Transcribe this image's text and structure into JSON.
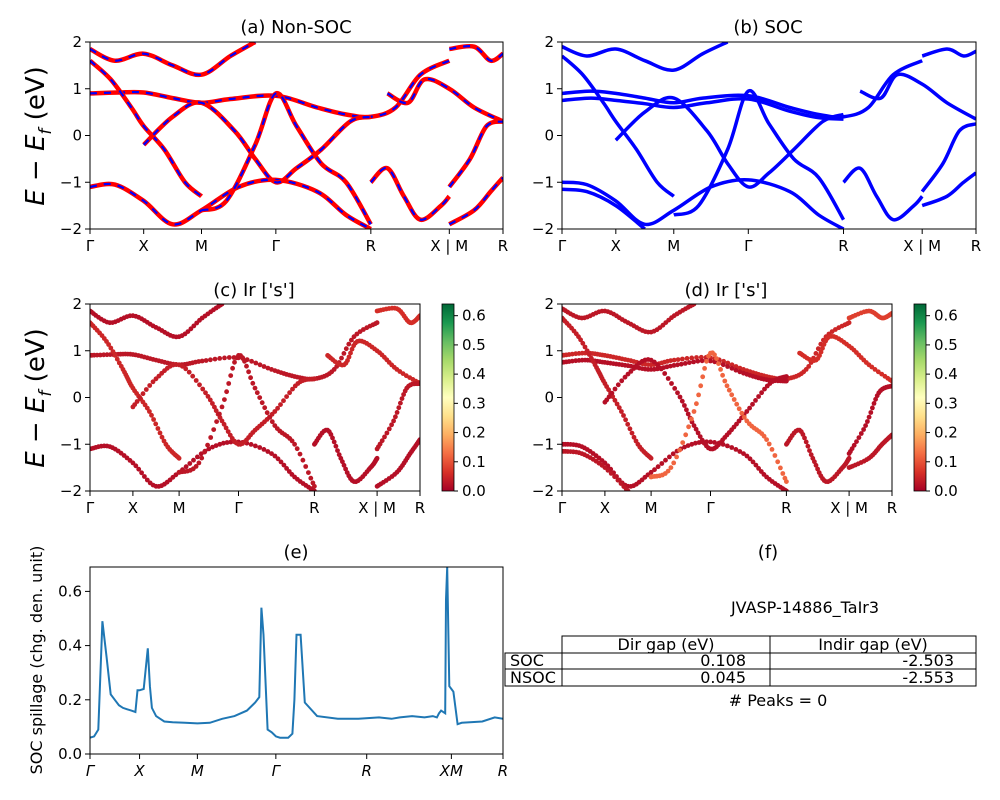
{
  "figure": {
    "ylabel_band": "E − E_f (eV)",
    "ylabel_band_parts": [
      "E",
      " − ",
      "E",
      "f",
      " (eV)"
    ]
  },
  "colors": {
    "nonsoc_red": "#ff0000",
    "nonsoc_blue": "#0000ff",
    "soc_blue": "#0000ff",
    "spillage_line": "#1f77b4",
    "colormap": [
      "#a50026",
      "#d73027",
      "#f46d43",
      "#fdae61",
      "#fee08b",
      "#ffffbf",
      "#d9ef8b",
      "#a6d96a",
      "#66bd63",
      "#1a9850",
      "#006837"
    ]
  },
  "chart_data": [
    {
      "panel": "a",
      "type": "line",
      "title": "(a) Non-SOC",
      "ylim": [
        -2,
        2
      ],
      "yticks": [
        "2",
        "1",
        "0",
        "−1",
        "−2"
      ],
      "ytick_values": [
        2,
        1,
        0,
        -1,
        -2
      ],
      "kpath_labels": [
        "Γ",
        "X",
        "M",
        "Γ",
        "R",
        "X | M",
        "R"
      ],
      "kpath_positions": [
        0,
        0.13,
        0.27,
        0.45,
        0.68,
        0.87,
        1.0
      ],
      "break_at": 0.87,
      "bands": [
        [
          [
            0,
            -1.1
          ],
          [
            0.06,
            -1.05
          ],
          [
            0.13,
            -1.4
          ],
          [
            0.2,
            -1.9
          ],
          [
            0.27,
            -1.6
          ],
          [
            0.36,
            -1.1
          ],
          [
            0.45,
            -0.95
          ],
          [
            0.55,
            -1.2
          ],
          [
            0.62,
            -1.7
          ],
          [
            0.68,
            -2.0
          ]
        ],
        [
          [
            0,
            0.9
          ],
          [
            0.07,
            0.92
          ],
          [
            0.13,
            0.92
          ],
          [
            0.2,
            0.8
          ],
          [
            0.27,
            0.7
          ],
          [
            0.34,
            0.78
          ],
          [
            0.45,
            0.85
          ],
          [
            0.55,
            0.6
          ],
          [
            0.62,
            0.45
          ],
          [
            0.68,
            0.4
          ],
          [
            0.74,
            0.6
          ],
          [
            0.8,
            1.3
          ],
          [
            0.87,
            1.6
          ]
        ],
        [
          [
            0,
            1.6
          ],
          [
            0.05,
            1.2
          ],
          [
            0.1,
            0.6
          ],
          [
            0.13,
            0.2
          ],
          [
            0.18,
            -0.3
          ],
          [
            0.23,
            -1.0
          ],
          [
            0.27,
            -1.3
          ]
        ],
        [
          [
            0,
            1.85
          ],
          [
            0.06,
            1.6
          ],
          [
            0.13,
            1.75
          ],
          [
            0.2,
            1.5
          ],
          [
            0.27,
            1.3
          ],
          [
            0.34,
            1.7
          ],
          [
            0.4,
            2.0
          ]
        ],
        [
          [
            0.13,
            -0.2
          ],
          [
            0.2,
            0.4
          ],
          [
            0.27,
            0.7
          ],
          [
            0.35,
            0.1
          ],
          [
            0.4,
            -0.5
          ],
          [
            0.45,
            -1.0
          ],
          [
            0.5,
            -0.7
          ],
          [
            0.56,
            -0.3
          ],
          [
            0.63,
            0.3
          ],
          [
            0.68,
            0.4
          ]
        ],
        [
          [
            0.27,
            -1.6
          ],
          [
            0.33,
            -1.4
          ],
          [
            0.4,
            -0.2
          ],
          [
            0.45,
            0.9
          ],
          [
            0.5,
            0.2
          ],
          [
            0.56,
            -0.6
          ],
          [
            0.62,
            -1.0
          ],
          [
            0.68,
            -1.9
          ]
        ],
        [
          [
            0.68,
            -1.0
          ],
          [
            0.72,
            -0.7
          ],
          [
            0.76,
            -1.3
          ],
          [
            0.8,
            -1.8
          ],
          [
            0.85,
            -1.5
          ],
          [
            0.87,
            -1.3
          ]
        ],
        [
          [
            0.72,
            0.9
          ],
          [
            0.77,
            0.7
          ],
          [
            0.81,
            1.2
          ],
          [
            0.87,
            1.0
          ],
          [
            0.93,
            0.6
          ],
          [
            1.0,
            0.3
          ]
        ],
        [
          [
            0.87,
            -1.1
          ],
          [
            0.92,
            -0.5
          ],
          [
            0.96,
            0.2
          ],
          [
            1.0,
            0.3
          ]
        ],
        [
          [
            0.87,
            1.85
          ],
          [
            0.93,
            1.9
          ],
          [
            0.97,
            1.6
          ],
          [
            1.0,
            1.75
          ]
        ],
        [
          [
            0.87,
            -1.9
          ],
          [
            0.93,
            -1.6
          ],
          [
            0.97,
            -1.2
          ],
          [
            1.0,
            -0.9
          ]
        ]
      ]
    },
    {
      "panel": "b",
      "type": "line",
      "title": "(b) SOC",
      "ylim": [
        -2,
        2
      ],
      "yticks": [
        "2",
        "1",
        "0",
        "−1",
        "−2"
      ],
      "ytick_values": [
        2,
        1,
        0,
        -1,
        -2
      ],
      "kpath_labels": [
        "Γ",
        "X",
        "M",
        "Γ",
        "R",
        "X | M",
        "R"
      ],
      "kpath_positions": [
        0,
        0.13,
        0.27,
        0.45,
        0.68,
        0.87,
        1.0
      ],
      "break_at": 0.87,
      "bands": [
        [
          [
            0,
            -1.0
          ],
          [
            0.06,
            -1.05
          ],
          [
            0.13,
            -1.4
          ],
          [
            0.2,
            -1.9
          ],
          [
            0.27,
            -1.6
          ],
          [
            0.36,
            -1.1
          ],
          [
            0.45,
            -0.95
          ],
          [
            0.55,
            -1.2
          ],
          [
            0.62,
            -1.7
          ],
          [
            0.68,
            -2.0
          ]
        ],
        [
          [
            0,
            -1.15
          ],
          [
            0.06,
            -1.2
          ],
          [
            0.13,
            -1.5
          ],
          [
            0.2,
            -2.0
          ]
        ],
        [
          [
            0,
            0.9
          ],
          [
            0.07,
            0.95
          ],
          [
            0.13,
            0.9
          ],
          [
            0.2,
            0.8
          ],
          [
            0.27,
            0.7
          ],
          [
            0.34,
            0.8
          ],
          [
            0.45,
            0.85
          ],
          [
            0.55,
            0.6
          ],
          [
            0.62,
            0.45
          ],
          [
            0.68,
            0.4
          ],
          [
            0.74,
            0.6
          ],
          [
            0.8,
            1.3
          ],
          [
            0.87,
            1.6
          ]
        ],
        [
          [
            0,
            0.75
          ],
          [
            0.07,
            0.8
          ],
          [
            0.13,
            0.75
          ],
          [
            0.2,
            0.68
          ],
          [
            0.27,
            0.6
          ],
          [
            0.35,
            0.7
          ],
          [
            0.45,
            0.78
          ],
          [
            0.55,
            0.52
          ],
          [
            0.62,
            0.38
          ],
          [
            0.68,
            0.35
          ]
        ],
        [
          [
            0,
            1.7
          ],
          [
            0.05,
            1.3
          ],
          [
            0.1,
            0.7
          ],
          [
            0.13,
            0.3
          ],
          [
            0.18,
            -0.3
          ],
          [
            0.23,
            -1.0
          ],
          [
            0.27,
            -1.3
          ]
        ],
        [
          [
            0,
            1.9
          ],
          [
            0.06,
            1.7
          ],
          [
            0.13,
            1.85
          ],
          [
            0.2,
            1.6
          ],
          [
            0.27,
            1.4
          ],
          [
            0.34,
            1.75
          ],
          [
            0.4,
            2.0
          ]
        ],
        [
          [
            0.13,
            -0.1
          ],
          [
            0.2,
            0.5
          ],
          [
            0.27,
            0.8
          ],
          [
            0.35,
            0.1
          ],
          [
            0.4,
            -0.6
          ],
          [
            0.45,
            -1.1
          ],
          [
            0.5,
            -0.8
          ],
          [
            0.56,
            -0.3
          ],
          [
            0.63,
            0.3
          ],
          [
            0.68,
            0.45
          ]
        ],
        [
          [
            0.27,
            -1.7
          ],
          [
            0.33,
            -1.5
          ],
          [
            0.4,
            -0.3
          ],
          [
            0.45,
            0.95
          ],
          [
            0.5,
            0.25
          ],
          [
            0.56,
            -0.5
          ],
          [
            0.62,
            -0.9
          ],
          [
            0.68,
            -1.8
          ]
        ],
        [
          [
            0.68,
            -1.0
          ],
          [
            0.72,
            -0.7
          ],
          [
            0.76,
            -1.3
          ],
          [
            0.8,
            -1.8
          ],
          [
            0.85,
            -1.5
          ],
          [
            0.87,
            -1.3
          ]
        ],
        [
          [
            0.72,
            0.95
          ],
          [
            0.77,
            0.8
          ],
          [
            0.81,
            1.3
          ],
          [
            0.87,
            1.1
          ],
          [
            0.93,
            0.7
          ],
          [
            1.0,
            0.35
          ]
        ],
        [
          [
            0.87,
            -1.2
          ],
          [
            0.92,
            -0.6
          ],
          [
            0.96,
            0.1
          ],
          [
            1.0,
            0.25
          ]
        ],
        [
          [
            0.87,
            1.7
          ],
          [
            0.93,
            1.85
          ],
          [
            0.97,
            1.7
          ],
          [
            1.0,
            1.8
          ]
        ],
        [
          [
            0.87,
            -1.5
          ],
          [
            0.93,
            -1.3
          ],
          [
            0.97,
            -1.0
          ],
          [
            1.0,
            -0.8
          ]
        ]
      ]
    },
    {
      "panel": "c",
      "type": "scatter",
      "title": "(c)  Ir ['s']",
      "ylim": [
        -2,
        2
      ],
      "yticks": [
        "2",
        "1",
        "0",
        "−1",
        "−2"
      ],
      "ytick_values": [
        2,
        1,
        0,
        -1,
        -2
      ],
      "kpath_labels": [
        "Γ",
        "X",
        "M",
        "Γ",
        "R",
        "X | M",
        "R"
      ],
      "kpath_positions": [
        0,
        0.13,
        0.27,
        0.45,
        0.68,
        0.87,
        1.0
      ],
      "colorbar": {
        "ticks": [
          "0.6",
          "0.5",
          "0.4",
          "0.3",
          "0.2",
          "0.1",
          "0.0"
        ],
        "tick_values": [
          0.6,
          0.5,
          0.4,
          0.3,
          0.2,
          0.1,
          0.0
        ],
        "range": [
          0.0,
          0.64
        ]
      },
      "bands_weight": [
        0.02,
        0.03,
        0.05,
        0.02,
        0.04,
        0.03,
        0.02,
        0.05,
        0.03,
        0.06,
        0.02
      ]
    },
    {
      "panel": "d",
      "type": "scatter",
      "title": "(d) Ir ['s']",
      "ylim": [
        -2,
        2
      ],
      "yticks": [
        "2",
        "1",
        "0",
        "−1",
        "−2"
      ],
      "ytick_values": [
        2,
        1,
        0,
        -1,
        -2
      ],
      "kpath_labels": [
        "Γ",
        "X",
        "M",
        "Γ",
        "R",
        "X | M",
        "R"
      ],
      "kpath_positions": [
        0,
        0.13,
        0.27,
        0.45,
        0.68,
        0.87,
        1.0
      ],
      "colorbar": {
        "ticks": [
          "0.6",
          "0.5",
          "0.4",
          "0.3",
          "0.2",
          "0.1",
          "0.0"
        ],
        "tick_values": [
          0.6,
          0.5,
          0.4,
          0.3,
          0.2,
          0.1,
          0.0
        ],
        "range": [
          0.0,
          0.64
        ]
      },
      "bands_weight": [
        0.02,
        0.03,
        0.05,
        0.02,
        0.04,
        0.03,
        0.02,
        0.12,
        0.03,
        0.06,
        0.02,
        0.08,
        0.03
      ]
    },
    {
      "panel": "e",
      "type": "line",
      "title": "(e)",
      "ylabel": "SOC spillage (chg. den. unit)",
      "ylim": [
        0,
        0.69
      ],
      "yticks": [
        "0.0",
        "0.2",
        "0.4",
        "0.6"
      ],
      "ytick_values": [
        0.0,
        0.2,
        0.4,
        0.6
      ],
      "kpath_labels": [
        "Γ",
        "X",
        "M",
        "Γ",
        "R",
        "XM",
        "R"
      ],
      "kpath_positions": [
        0,
        0.12,
        0.26,
        0.45,
        0.67,
        0.875,
        1.0
      ],
      "x": [
        0,
        0.01,
        0.02,
        0.03,
        0.04,
        0.05,
        0.06,
        0.07,
        0.08,
        0.09,
        0.1,
        0.11,
        0.115,
        0.12,
        0.13,
        0.14,
        0.145,
        0.15,
        0.16,
        0.17,
        0.18,
        0.2,
        0.23,
        0.26,
        0.29,
        0.32,
        0.35,
        0.38,
        0.4,
        0.41,
        0.415,
        0.42,
        0.43,
        0.44,
        0.45,
        0.46,
        0.48,
        0.49,
        0.495,
        0.5,
        0.51,
        0.52,
        0.55,
        0.6,
        0.65,
        0.7,
        0.73,
        0.75,
        0.78,
        0.81,
        0.83,
        0.84,
        0.845,
        0.85,
        0.86,
        0.862,
        0.865,
        0.87,
        0.875,
        0.88,
        0.89,
        0.9,
        0.95,
        0.98,
        1.0
      ],
      "values": [
        0.06,
        0.065,
        0.09,
        0.49,
        0.36,
        0.22,
        0.2,
        0.18,
        0.17,
        0.165,
        0.16,
        0.155,
        0.235,
        0.235,
        0.24,
        0.39,
        0.25,
        0.17,
        0.14,
        0.13,
        0.12,
        0.117,
        0.115,
        0.113,
        0.115,
        0.13,
        0.14,
        0.16,
        0.19,
        0.21,
        0.54,
        0.44,
        0.09,
        0.08,
        0.065,
        0.06,
        0.06,
        0.075,
        0.2,
        0.44,
        0.44,
        0.19,
        0.14,
        0.13,
        0.13,
        0.135,
        0.13,
        0.135,
        0.14,
        0.135,
        0.14,
        0.135,
        0.15,
        0.16,
        0.15,
        0.57,
        0.69,
        0.25,
        0.24,
        0.23,
        0.11,
        0.115,
        0.12,
        0.135,
        0.13
      ]
    }
  ],
  "panel_f": {
    "title": "(f)",
    "material": "JVASP-14886_TaIr3",
    "table": {
      "headers": [
        "",
        "Dir gap (eV)",
        "Indir gap (eV)"
      ],
      "rows": [
        [
          "SOC",
          "0.108",
          "-2.503"
        ],
        [
          "NSOC",
          "0.045",
          "-2.553"
        ]
      ]
    },
    "peaks_text": "# Peaks = 0"
  }
}
